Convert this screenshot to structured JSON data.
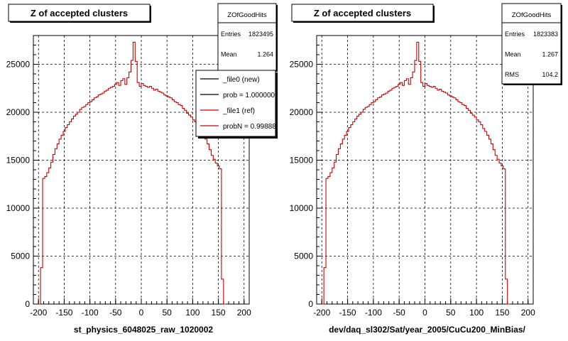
{
  "chart_data": [
    {
      "type": "line",
      "title": "Z of accepted clusters",
      "xlabel": "st_physics_6048025_raw_1020002",
      "ylabel": "",
      "xlim": [
        -210,
        210
      ],
      "ylim": [
        0,
        28000
      ],
      "grid": true,
      "x_ticks": [
        "-200",
        "-150",
        "-100",
        "-50",
        "0",
        "50",
        "100",
        "150",
        "200"
      ],
      "y_ticks": [
        "0",
        "5000",
        "10000",
        "15000",
        "20000",
        "25000"
      ],
      "stats": {
        "name": "ZOfGoodHits",
        "rows": [
          {
            "label": "Entries",
            "value": "1823495"
          },
          {
            "label": "Mean",
            "value": "1.264"
          }
        ]
      },
      "legend_position": "top-right",
      "legend": [
        {
          "label": "_file0 (new)",
          "color": "#000000"
        },
        {
          "label": "prob = 1.000000",
          "color": "#000000"
        },
        {
          "label": "_file1 (ref)",
          "color": "#cc0000"
        },
        {
          "label": "probN = 0.99888",
          "color": "#cc0000"
        }
      ],
      "series": [
        {
          "color": "#cc0000",
          "bin_width": 4,
          "x_start": -200,
          "values": [
            0,
            3800,
            13100,
            13300,
            13700,
            14200,
            14800,
            15600,
            16200,
            16700,
            17200,
            17600,
            18000,
            18400,
            18700,
            19000,
            19300,
            19600,
            19800,
            20000,
            20300,
            20500,
            20600,
            20800,
            21000,
            21100,
            21300,
            21500,
            21600,
            21800,
            21900,
            22000,
            22200,
            22300,
            22500,
            22600,
            22700,
            22900,
            23100,
            22800,
            23300,
            23500,
            22900,
            23600,
            24200,
            25400,
            27300,
            25300,
            23100,
            22700,
            23000,
            22800,
            22700,
            22600,
            22700,
            22500,
            22300,
            22400,
            22200,
            22100,
            22000,
            21800,
            21700,
            21600,
            21500,
            21300,
            21100,
            21000,
            20800,
            20700,
            20400,
            20200,
            19900,
            19700,
            19500,
            19200,
            19000,
            18700,
            18300,
            18000,
            17600,
            17200,
            16700,
            16100,
            15500,
            15100,
            14700,
            14400,
            14100,
            2600,
            0
          ]
        }
      ]
    },
    {
      "type": "line",
      "title": "Z of accepted clusters",
      "xlabel": "dev/daq_sl302/Sat/year_2005/CuCu200_MinBias/",
      "ylabel": "",
      "xlim": [
        -210,
        210
      ],
      "ylim": [
        0,
        28000
      ],
      "grid": true,
      "x_ticks": [
        "-200",
        "-150",
        "-100",
        "-50",
        "0",
        "50",
        "100",
        "150",
        "200"
      ],
      "y_ticks": [
        "0",
        "5000",
        "10000",
        "15000",
        "20000",
        "25000"
      ],
      "stats": {
        "name": "ZOfGoodHits",
        "rows": [
          {
            "label": "Entries",
            "value": "1823383"
          },
          {
            "label": "Mean",
            "value": "1.267"
          },
          {
            "label": "RMS",
            "value": "104.2"
          }
        ]
      },
      "series": [
        {
          "color": "#cc0000",
          "bin_width": 4,
          "x_start": -200,
          "values": [
            0,
            3800,
            13100,
            13300,
            13700,
            14200,
            14800,
            15600,
            16200,
            16700,
            17200,
            17600,
            18000,
            18400,
            18700,
            19000,
            19300,
            19600,
            19800,
            20000,
            20300,
            20500,
            20600,
            20800,
            21000,
            21100,
            21300,
            21500,
            21600,
            21800,
            21900,
            22000,
            22200,
            22300,
            22500,
            22600,
            22700,
            22900,
            23100,
            22800,
            23300,
            23500,
            22900,
            23600,
            24200,
            25400,
            27300,
            25300,
            23100,
            22700,
            23000,
            22800,
            22700,
            22600,
            22700,
            22500,
            22300,
            22400,
            22200,
            22100,
            22000,
            21800,
            21700,
            21600,
            21500,
            21300,
            21100,
            21000,
            20800,
            20700,
            20400,
            20200,
            19900,
            19700,
            19500,
            19200,
            19000,
            18700,
            18300,
            18000,
            17600,
            17200,
            16700,
            16100,
            15500,
            15100,
            14700,
            14400,
            14100,
            2600,
            0
          ]
        }
      ]
    }
  ]
}
